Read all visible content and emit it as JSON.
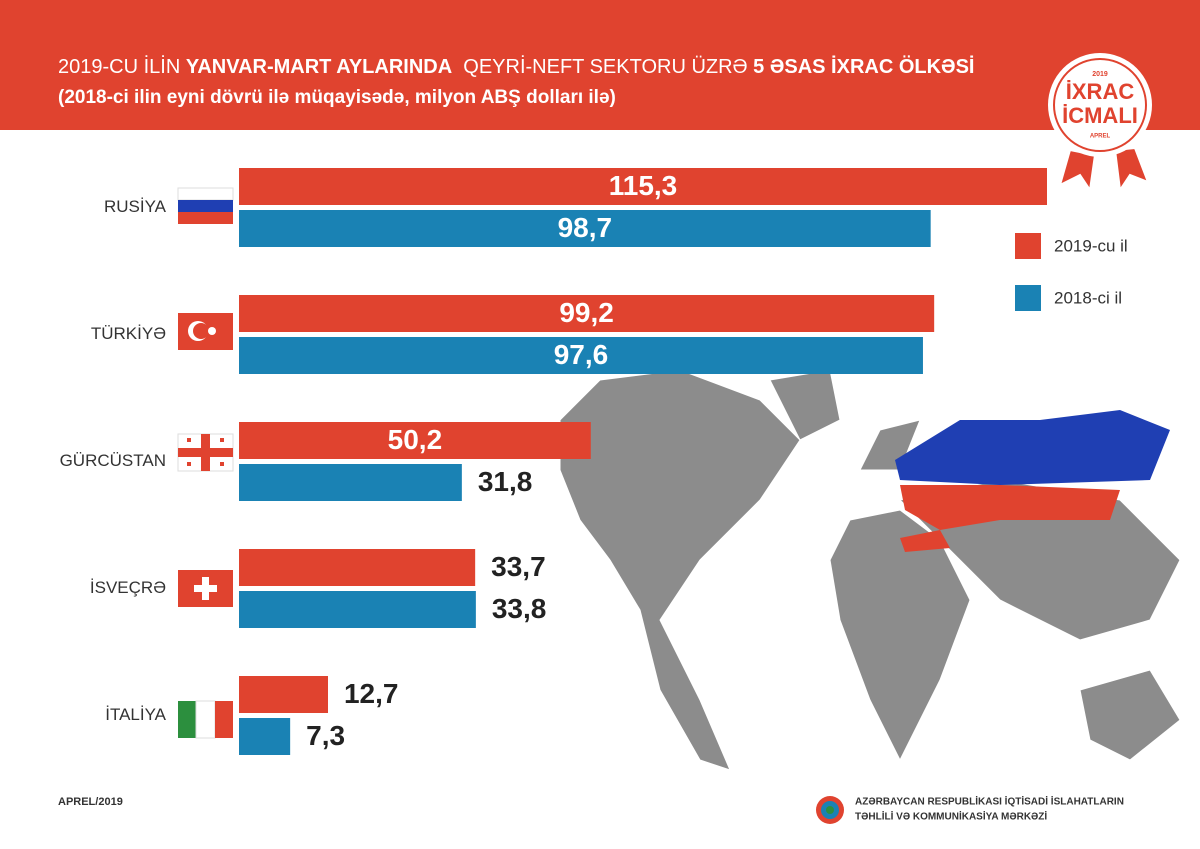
{
  "chart_data": {
    "type": "hbar",
    "title": [
      "2019-CU İLİN ",
      "YANVAR-MART AYLARINDA",
      "  QEYRİ-NEFT SEKTORU ÜZRƏ ",
      "5 ƏSAS İXRAC ÖLKƏSİ"
    ],
    "subtitle": "(2018-ci ilin eyni dövrü ilə müqayisədə, milyon ABŞ dolları ilə)",
    "categories": [
      "RUSİYA",
      "TÜRKİYƏ",
      "GÜRCÜSTAN",
      "İSVEÇRƏ",
      "İTALİYA"
    ],
    "series": [
      {
        "name": "2019-cu il",
        "color": "#e0432f",
        "values": [
          115.3,
          99.2,
          50.2,
          33.7,
          12.7
        ],
        "value_labels": [
          "115,3",
          "99,2",
          "50,2",
          "33,7",
          "12,7"
        ]
      },
      {
        "name": "2018-ci il",
        "color": "#1a82b4",
        "values": [
          98.7,
          97.6,
          31.8,
          33.8,
          7.3
        ],
        "value_labels": [
          "98,7",
          "97,6",
          "31,8",
          "33,8",
          "7,3"
        ]
      }
    ],
    "legend": "right"
  },
  "badge": {
    "year": "2019",
    "line1": "İXRAC",
    "line2": "İCMALI",
    "month": "APREL"
  },
  "footer": {
    "date": "APREL/2019",
    "org_line1": "AZƏRBAYCAN RESPUBLİKASI İQTİSADİ İSLAHATLARIN",
    "org_line2": "TƏHLİLİ VƏ KOMMUNİKASİYA MƏRKƏZİ"
  }
}
